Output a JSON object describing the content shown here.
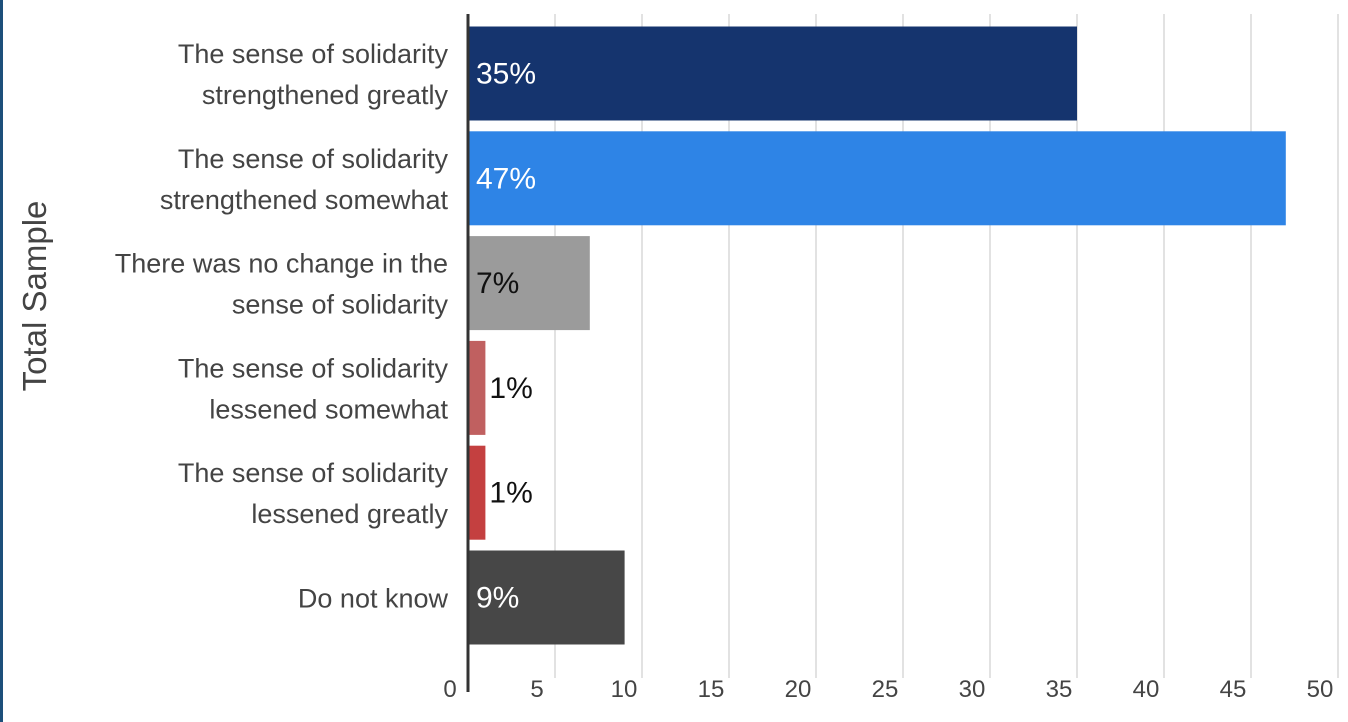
{
  "chart_data": {
    "type": "bar",
    "orientation": "horizontal",
    "title": "",
    "xlabel": "",
    "ylabel": "Total  Sample",
    "categories": [
      [
        "The sense of solidarity",
        "strengthened greatly"
      ],
      [
        "The sense of solidarity",
        "strengthened somewhat"
      ],
      [
        "There was no change in the",
        "sense of solidarity"
      ],
      [
        "The sense of solidarity",
        "lessened somewhat"
      ],
      [
        "The sense of solidarity",
        "lessened greatly"
      ],
      [
        "Do not know"
      ]
    ],
    "values": [
      35,
      47,
      7,
      1,
      1,
      9
    ],
    "data_labels": [
      "35%",
      "47%",
      "7%",
      "1%",
      "1%",
      "9%"
    ],
    "colors": [
      "#15346e",
      "#2e84e6",
      "#9b9b9b",
      "#c06060",
      "#c44040",
      "#474747"
    ],
    "label_colors": [
      "#ffffff",
      "#ffffff",
      "#111111",
      "#111111",
      "#111111",
      "#ffffff"
    ],
    "xlim": [
      0,
      50
    ],
    "xticks": [
      0,
      5,
      10,
      15,
      20,
      25,
      30,
      35,
      40,
      45,
      50
    ],
    "grid": true,
    "legend": "none"
  }
}
